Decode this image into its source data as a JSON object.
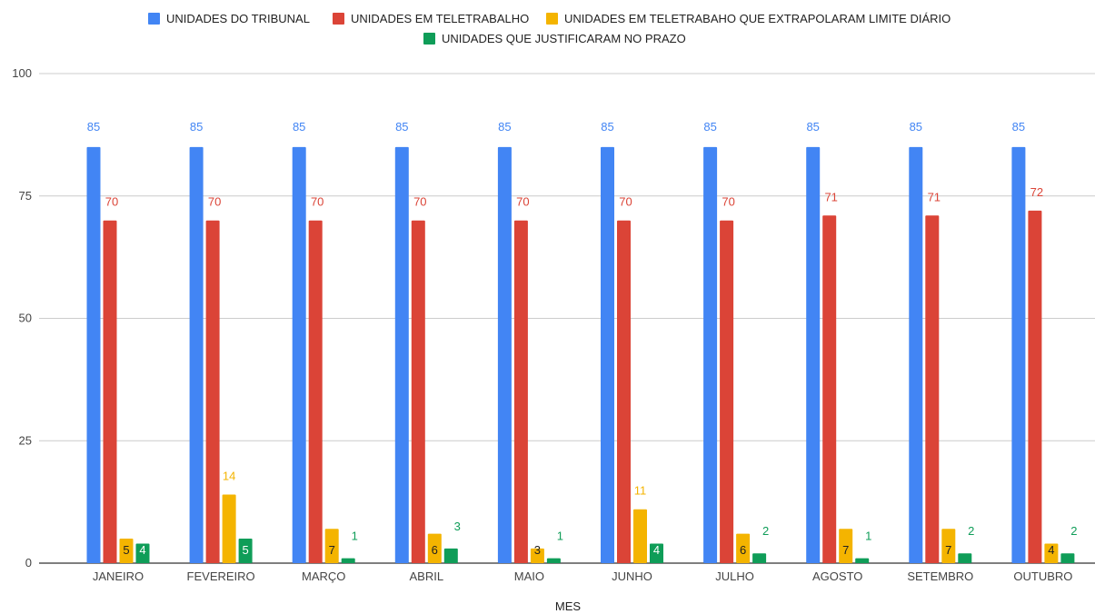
{
  "chart_data": {
    "type": "bar",
    "xlabel": "MES",
    "ylabel": "",
    "ylim": [
      0,
      100
    ],
    "yticks": [
      0,
      25,
      50,
      75,
      100
    ],
    "grid": true,
    "legend_position": "top",
    "categories": [
      "JANEIRO",
      "FEVEREIRO",
      "MARÇO",
      "ABRIL",
      "MAIO",
      "JUNHO",
      "JULHO",
      "AGOSTO",
      "SETEMBRO",
      "OUTUBRO"
    ],
    "series": [
      {
        "name": "UNIDADES DO TRIBUNAL",
        "color": "#4285f4",
        "values": [
          85,
          85,
          85,
          85,
          85,
          85,
          85,
          85,
          85,
          85
        ]
      },
      {
        "name": "UNIDADES EM TELETRABALHO",
        "color": "#db4437",
        "values": [
          70,
          70,
          70,
          70,
          70,
          70,
          70,
          71,
          71,
          72
        ]
      },
      {
        "name": "UNIDADES EM TELETRABAHO QUE EXTRAPOLARAM LIMITE DIÁRIO",
        "color": "#f4b400",
        "values": [
          5,
          14,
          7,
          6,
          3,
          11,
          6,
          7,
          7,
          4
        ]
      },
      {
        "name": "UNIDADES QUE JUSTIFICARAM NO PRAZO",
        "color": "#0f9d58",
        "values": [
          4,
          5,
          1,
          3,
          1,
          4,
          2,
          1,
          2,
          2
        ]
      }
    ]
  }
}
